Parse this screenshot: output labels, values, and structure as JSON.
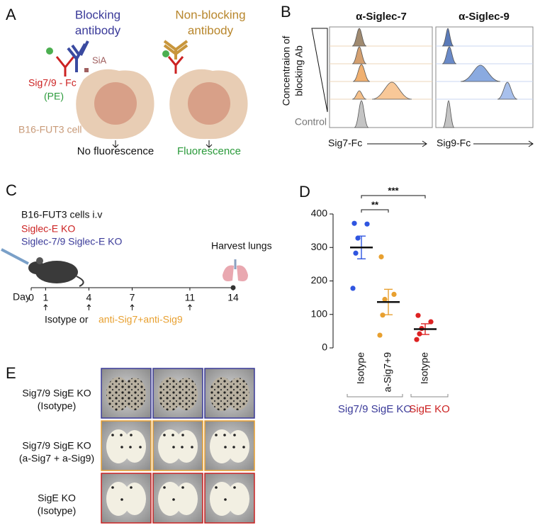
{
  "panel_a": {
    "label": "A",
    "blocking": [
      "Blocking",
      "antibody"
    ],
    "non_blocking": [
      "Non-blocking",
      "antibody"
    ],
    "fc": "Sig7/9 - Fc",
    "pe": "(PE)",
    "sia": "SiA",
    "cell": "B16-FUT3 cell",
    "no_fluorescence": "No fluorescence",
    "fluorescence": "Fluorescence"
  },
  "panel_b": {
    "label": "B",
    "titles": [
      "α-Siglec-7",
      "α-Siglec-9"
    ],
    "y_label": [
      "Concentraion of",
      "blocking Ab"
    ],
    "control": "Control",
    "x_labels": [
      "Sig7-Fc",
      "Sig9-Fc"
    ]
  },
  "panel_c": {
    "label": "C",
    "lines": [
      "B16-FUT3 cells i.v",
      "Siglec-E KO",
      "Siglec-7/9 Siglec-E KO"
    ],
    "harvest": "Harvest lungs",
    "day_label": "Day",
    "days": [
      0,
      1,
      4,
      7,
      11,
      14
    ],
    "treatment": [
      "Isotype or",
      "anti-Sig7+anti-Sig9"
    ]
  },
  "chart_data": {
    "type": "dot",
    "label": "D",
    "ylim": [
      0,
      400
    ],
    "yticks": [
      0,
      100,
      200,
      300,
      400
    ],
    "groups": [
      {
        "name": "Sig7/9 SigE KO",
        "color": "#3a3a99",
        "categories": [
          "Isotype",
          "a-Sig7+9"
        ],
        "series": [
          {
            "color": "#2f55e0",
            "values": [
              372,
              370,
              328,
              283,
              178
            ],
            "mean": 300,
            "sem": 34
          },
          {
            "color": "#e8a030",
            "values": [
              272,
              160,
              145,
              98,
              38
            ],
            "mean": 137,
            "sem": 38
          }
        ]
      },
      {
        "name": "SigE KO",
        "color": "#cc2222",
        "categories": [
          "Isotype"
        ],
        "series": [
          {
            "color": "#dd2222",
            "values": [
              97,
              78,
              58,
              42,
              25
            ],
            "mean": 56,
            "sem": 16
          }
        ]
      }
    ],
    "significance": [
      "**",
      "***"
    ]
  },
  "panel_e": {
    "label": "E",
    "rows": [
      [
        "Sig7/9 SigE KO",
        "(Isotype)"
      ],
      [
        "Sig7/9 SigE KO",
        "(a-Sig7 + a-Sig9)"
      ],
      [
        "SigE KO",
        "(Isotype)"
      ]
    ]
  }
}
